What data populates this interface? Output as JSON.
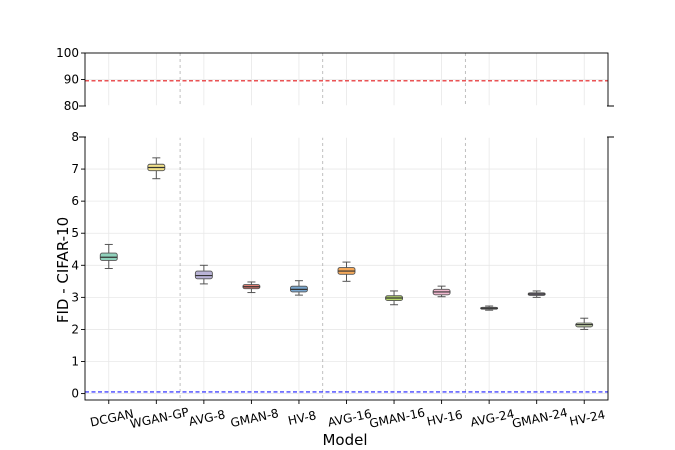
{
  "chart_data": {
    "type": "box",
    "xlabel": "Model",
    "ylabel": "FID - CIFAR-10",
    "categories": [
      "DCGAN",
      "WGAN-GP",
      "AVG-8",
      "GMAN-8",
      "HV-8",
      "AVG-16",
      "GMAN-16",
      "HV-16",
      "AVG-24",
      "GMAN-24",
      "HV-24"
    ],
    "series": [
      {
        "category": "DCGAN",
        "min": 3.9,
        "q1": 4.15,
        "median": 4.25,
        "q3": 4.38,
        "max": 4.65,
        "color": "#8fd1bb"
      },
      {
        "category": "WGAN-GP",
        "min": 6.7,
        "q1": 6.95,
        "median": 7.05,
        "q3": 7.15,
        "max": 7.35,
        "color": "#f2e28a"
      },
      {
        "category": "AVG-8",
        "min": 3.42,
        "q1": 3.58,
        "median": 3.68,
        "q3": 3.82,
        "max": 4.0,
        "color": "#b9b3d6"
      },
      {
        "category": "GMAN-8",
        "min": 3.15,
        "q1": 3.27,
        "median": 3.33,
        "q3": 3.4,
        "max": 3.48,
        "color": "#e57f73"
      },
      {
        "category": "HV-8",
        "min": 3.07,
        "q1": 3.17,
        "median": 3.25,
        "q3": 3.35,
        "max": 3.52,
        "color": "#7aa7cf"
      },
      {
        "category": "AVG-16",
        "min": 3.5,
        "q1": 3.72,
        "median": 3.82,
        "q3": 3.93,
        "max": 4.1,
        "color": "#f5a95a"
      },
      {
        "category": "GMAN-16",
        "min": 2.77,
        "q1": 2.9,
        "median": 2.98,
        "q3": 3.05,
        "max": 3.2,
        "color": "#b7d96b"
      },
      {
        "category": "HV-16",
        "min": 3.02,
        "q1": 3.08,
        "median": 3.17,
        "q3": 3.25,
        "max": 3.35,
        "color": "#f0b9cf"
      },
      {
        "category": "AVG-24",
        "min": 2.6,
        "q1": 2.63,
        "median": 2.66,
        "q3": 2.69,
        "max": 2.73,
        "color": "#bdbdbd"
      },
      {
        "category": "GMAN-24",
        "min": 3.0,
        "q1": 3.06,
        "median": 3.1,
        "q3": 3.14,
        "max": 3.2,
        "color": "#b4a0c9"
      },
      {
        "category": "HV-24",
        "min": 2.0,
        "q1": 2.08,
        "median": 2.15,
        "q3": 2.2,
        "max": 2.35,
        "color": "#d3e5b5"
      }
    ],
    "reference_lines": [
      {
        "y": 89.5,
        "color": "#e41a1c",
        "style": "dashed",
        "panel": "top"
      },
      {
        "y": 0.05,
        "color": "#1f1fff",
        "style": "dashed",
        "panel": "bottom"
      }
    ],
    "group_separators_after": [
      "WGAN-GP",
      "HV-8",
      "HV-16"
    ],
    "top_panel": {
      "ylim": [
        80,
        100
      ],
      "yticks": [
        80,
        90,
        100
      ]
    },
    "bottom_panel": {
      "ylim": [
        -0.2,
        8
      ],
      "yticks": [
        0,
        1,
        2,
        3,
        4,
        5,
        6,
        7,
        8
      ]
    },
    "grid": true,
    "broken_axis": true
  }
}
